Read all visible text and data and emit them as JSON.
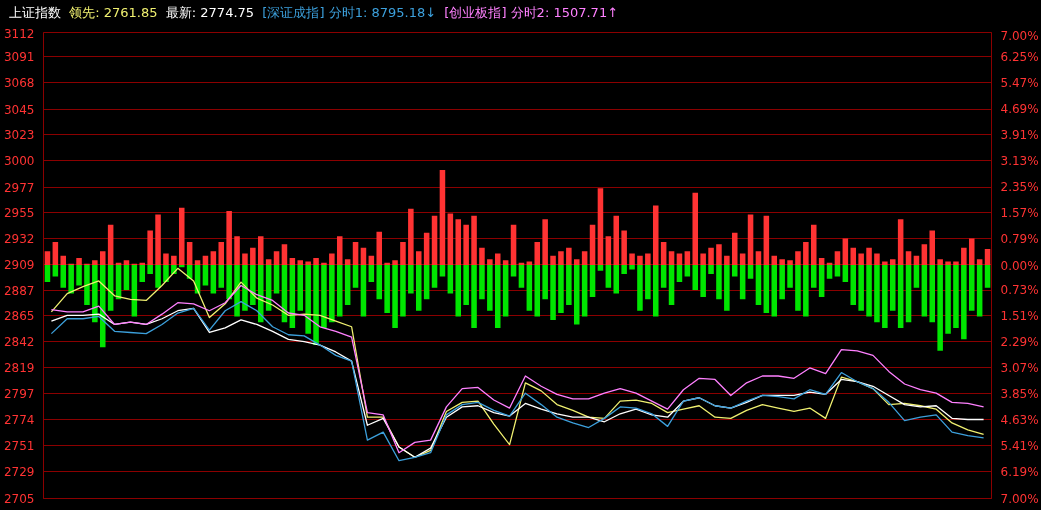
{
  "chart_data": [
    {
      "type": "bar",
      "grid": "y",
      "categories": [
        null,
        null,
        null,
        null,
        null,
        null,
        null,
        null,
        null,
        null,
        null,
        null,
        null,
        null,
        null,
        null,
        null,
        null,
        null,
        null,
        null,
        null,
        null,
        null,
        null,
        null,
        null,
        null,
        null,
        null,
        null,
        null,
        null,
        null,
        null,
        null,
        null,
        null,
        null,
        null,
        null,
        null,
        null,
        null,
        null,
        null,
        null,
        null,
        null,
        null,
        null,
        null,
        null,
        null,
        null,
        null,
        null,
        null,
        null,
        null,
        null,
        null,
        null,
        null,
        null,
        null,
        null,
        null,
        null,
        null,
        null,
        null,
        null,
        null,
        null,
        null,
        null,
        null,
        null,
        null,
        null,
        null,
        null,
        null,
        null,
        null,
        null,
        null,
        null,
        null,
        null,
        null,
        null,
        null,
        null,
        null,
        null,
        null,
        null,
        null,
        null,
        null,
        null,
        null,
        null,
        null,
        null,
        null,
        null,
        null,
        null,
        null,
        null,
        null,
        null,
        null,
        null,
        null,
        null,
        null
      ],
      "ylim": [
        2705,
        3112
      ],
      "yticks": [
        3112,
        3091,
        3068,
        3045,
        3023,
        3000,
        2977,
        2955,
        2932,
        2909,
        2887,
        2865,
        2842,
        2819,
        2797,
        2774,
        2751,
        2729,
        2705
      ],
      "y2lim": [
        -7,
        7
      ],
      "y2ticks": [
        {
          "value": 7,
          "label": "7.00%"
        },
        {
          "value": 6.25,
          "label": "6.25%"
        },
        {
          "value": 5.47,
          "label": "5.47%"
        },
        {
          "value": 4.69,
          "label": "4.69%"
        },
        {
          "value": 3.91,
          "label": "3.91%"
        },
        {
          "value": 3.13,
          "label": "3.13%"
        },
        {
          "value": 2.35,
          "label": "2.35%"
        },
        {
          "value": 1.57,
          "label": "1.57%"
        },
        {
          "value": 0.79,
          "label": "0.79%"
        },
        {
          "value": 0,
          "label": "0.00%"
        },
        {
          "value": -0.73,
          "label": "0.73%"
        },
        {
          "value": -1.51,
          "label": "1.51%"
        },
        {
          "value": -2.29,
          "label": "2.29%"
        },
        {
          "value": -3.07,
          "label": "3.07%"
        },
        {
          "value": -3.85,
          "label": "3.85%"
        },
        {
          "value": -4.63,
          "label": "4.63%"
        },
        {
          "value": -5.41,
          "label": "5.41%"
        },
        {
          "value": -6.19,
          "label": "6.19%"
        },
        {
          "value": -7,
          "label": "7.00%"
        }
      ],
      "series": [
        {
          "color": "#ff3333",
          "base": [
            2909,
            2909,
            2909,
            2909,
            2909,
            2909,
            2909,
            2909,
            2909,
            2909,
            2909,
            2909,
            2909,
            2909,
            2909,
            2909,
            2909,
            2909,
            2909,
            2909,
            2909,
            2909,
            2909,
            2909,
            2909,
            2909,
            2909,
            2909,
            2909,
            2909,
            2909,
            2909,
            2909,
            2909,
            2909,
            2909,
            2909,
            2909,
            2909,
            2909,
            2909,
            2909,
            2909,
            2909,
            2909,
            2909,
            2909,
            2909,
            2909,
            2909,
            2909,
            2909,
            2909,
            2909,
            2909,
            2909,
            2909,
            2909,
            2909,
            2909,
            2909,
            2909,
            2909,
            2909,
            2909,
            2909,
            2909,
            2909,
            2909,
            2909,
            2909,
            2909,
            2909,
            2909,
            2909,
            2909,
            2909,
            2909,
            2909,
            2909,
            2909,
            2909,
            2909,
            2909,
            2909,
            2909,
            2909,
            2909,
            2909,
            2909,
            2909,
            2909,
            2909,
            2909,
            2909,
            2909,
            2909,
            2909,
            2909,
            2909,
            2909,
            2909,
            2909,
            2909,
            2909,
            2909,
            2909,
            2909,
            2909,
            2909,
            2909,
            2909,
            2909,
            2909,
            2909,
            2909,
            2909,
            2909,
            2909,
            2909
          ],
          "values": [
            12,
            20,
            8,
            1,
            6,
            1,
            4,
            12,
            35,
            2,
            4,
            1,
            2,
            30,
            44,
            10,
            8,
            50,
            20,
            4,
            8,
            12,
            20,
            47,
            25,
            10,
            15,
            25,
            5,
            12,
            18,
            6,
            4,
            3,
            6,
            2,
            10,
            25,
            5,
            20,
            15,
            8,
            29,
            2,
            4,
            20,
            49,
            12,
            28,
            43,
            83,
            45,
            40,
            35,
            43,
            15,
            5,
            10,
            4,
            35,
            2,
            3,
            20,
            40,
            8,
            12,
            15,
            5,
            12,
            35,
            67,
            25,
            43,
            30,
            10,
            8,
            10,
            52,
            20,
            12,
            10,
            12,
            63,
            10,
            15,
            18,
            8,
            28,
            10,
            44,
            12,
            43,
            8,
            5,
            4,
            12,
            20,
            35,
            6,
            2,
            12,
            23,
            15,
            10,
            15,
            10,
            3,
            5,
            40,
            12,
            8,
            18,
            30,
            5,
            3,
            3,
            15,
            23,
            5,
            14
          ]
        },
        {
          "color": "#00e600",
          "base": [
            2909,
            2909,
            2909,
            2909,
            2909,
            2909,
            2909,
            2909,
            2909,
            2909,
            2909,
            2909,
            2909,
            2909,
            2909,
            2909,
            2909,
            2909,
            2909,
            2909,
            2909,
            2909,
            2909,
            2909,
            2909,
            2909,
            2909,
            2909,
            2909,
            2909,
            2909,
            2909,
            2909,
            2909,
            2909,
            2909,
            2909,
            2909,
            2909,
            2909,
            2909,
            2909,
            2909,
            2909,
            2909,
            2909,
            2909,
            2909,
            2909,
            2909,
            2909,
            2909,
            2909,
            2909,
            2909,
            2909,
            2909,
            2909,
            2909,
            2909,
            2909,
            2909,
            2909,
            2909,
            2909,
            2909,
            2909,
            2909,
            2909,
            2909,
            2909,
            2909,
            2909,
            2909,
            2909,
            2909,
            2909,
            2909,
            2909,
            2909,
            2909,
            2909,
            2909,
            2909,
            2909,
            2909,
            2909,
            2909,
            2909,
            2909,
            2909,
            2909,
            2909,
            2909,
            2909,
            2909,
            2909,
            2909,
            2909,
            2909,
            2909,
            2909,
            2909,
            2909,
            2909,
            2909,
            2909,
            2909,
            2909,
            2909,
            2909,
            2909,
            2909,
            2909,
            2909,
            2909,
            2909,
            2909,
            2909,
            2909
          ],
          "values": [
            -15,
            -10,
            -20,
            -25,
            -18,
            -35,
            -50,
            -72,
            -40,
            -30,
            -22,
            -45,
            -15,
            -8,
            -20,
            -15,
            -8,
            -2,
            -12,
            -25,
            -18,
            -25,
            -20,
            -30,
            -45,
            -40,
            -35,
            -50,
            -40,
            -25,
            -50,
            -55,
            -40,
            -60,
            -70,
            -55,
            -50,
            -45,
            -35,
            -20,
            -45,
            -15,
            -30,
            -42,
            -55,
            -45,
            -25,
            -40,
            -30,
            -20,
            -10,
            -25,
            -45,
            -35,
            -55,
            -30,
            -40,
            -55,
            -45,
            -10,
            -20,
            -40,
            -45,
            -30,
            -48,
            -42,
            -35,
            -52,
            -45,
            -28,
            -5,
            -20,
            -25,
            -8,
            -4,
            -40,
            -30,
            -45,
            -20,
            -35,
            -15,
            -10,
            -22,
            -28,
            -8,
            -30,
            -40,
            -10,
            -30,
            -12,
            -35,
            -42,
            -45,
            -30,
            -20,
            -40,
            -45,
            -20,
            -28,
            -12,
            -10,
            -15,
            -35,
            -40,
            -45,
            -50,
            -55,
            -40,
            -55,
            -50,
            -20,
            -45,
            -50,
            -75,
            -60,
            -55,
            -65,
            -40,
            -45,
            -20
          ]
        }
      ]
    },
    {
      "type": "line",
      "title": "上证指数",
      "legend": "top",
      "tick_labels": false,
      "categories": [
        null,
        null,
        null,
        null,
        null,
        null,
        null,
        null,
        null,
        null,
        null,
        null,
        null,
        null,
        null,
        null,
        null,
        null,
        null,
        null,
        null,
        null,
        null,
        null,
        null,
        null,
        null,
        null,
        null,
        null,
        null,
        null,
        null,
        null,
        null,
        null,
        null,
        null,
        null,
        null,
        null,
        null,
        null,
        null,
        null,
        null,
        null,
        null,
        null,
        null,
        null,
        null,
        null,
        null,
        null,
        null,
        null,
        null,
        null,
        null
      ],
      "ylim": [
        2705,
        3112
      ],
      "yticks": [
        3112,
        3091,
        3068,
        3045,
        3023,
        3000,
        2977,
        2955,
        2932,
        2909,
        2887,
        2865,
        2842,
        2819,
        2797,
        2774,
        2751,
        2729,
        2705
      ],
      "series": [
        {
          "name": "领先: 2761.85",
          "color": "#f0f070",
          "values": [
            2868,
            2884,
            2890,
            2895,
            2882,
            2879,
            2878,
            2891,
            2906,
            2895,
            2863,
            2875,
            2894,
            2880,
            2874,
            2865,
            2866,
            2865,
            2860,
            2855,
            2776,
            2776,
            2750,
            2741,
            2747,
            2781,
            2789,
            2790,
            2770,
            2752,
            2806,
            2799,
            2787,
            2782,
            2776,
            2775,
            2790,
            2791,
            2788,
            2780,
            2783,
            2786,
            2776,
            2775,
            2782,
            2787,
            2784,
            2781,
            2784,
            2775,
            2811,
            2807,
            2801,
            2787,
            2788,
            2786,
            2783,
            2771,
            2765,
            2761
          ]
        },
        {
          "name": "最新: 2774.75",
          "color": "#ffffff",
          "values": [
            2860,
            2865,
            2865,
            2866,
            2857,
            2859,
            2857,
            2862,
            2869,
            2871,
            2850,
            2854,
            2861,
            2857,
            2851,
            2844,
            2842,
            2839,
            2833,
            2825,
            2769,
            2775,
            2750,
            2741,
            2749,
            2776,
            2785,
            2786,
            2780,
            2777,
            2788,
            2783,
            2779,
            2776,
            2776,
            2772,
            2779,
            2783,
            2778,
            2776,
            2790,
            2793,
            2786,
            2784,
            2789,
            2795,
            2795,
            2795,
            2798,
            2796,
            2809,
            2807,
            2803,
            2795,
            2787,
            2785,
            2786,
            2775,
            2774,
            2774
          ]
        },
        {
          "name": "[深证成指] 分时1: 8795.18↓",
          "color": "#3ca0dc",
          "values": [
            2849,
            2862,
            2862,
            2864,
            2851,
            2850,
            2849,
            2857,
            2867,
            2871,
            2852,
            2869,
            2877,
            2869,
            2855,
            2848,
            2847,
            2839,
            2830,
            2825,
            2756,
            2763,
            2738,
            2741,
            2745,
            2778,
            2787,
            2789,
            2782,
            2777,
            2797,
            2787,
            2776,
            2771,
            2767,
            2775,
            2785,
            2784,
            2779,
            2768,
            2790,
            2793,
            2786,
            2784,
            2790,
            2795,
            2794,
            2792,
            2800,
            2796,
            2815,
            2807,
            2801,
            2789,
            2773,
            2776,
            2778,
            2763,
            2760,
            2758
          ]
        },
        {
          "name": "[创业板指] 分时2: 1507.71↑",
          "color": "#ff80ff",
          "values": [
            2870,
            2868,
            2868,
            2873,
            2857,
            2859,
            2857,
            2866,
            2876,
            2875,
            2869,
            2876,
            2891,
            2883,
            2878,
            2867,
            2865,
            2855,
            2851,
            2846,
            2780,
            2778,
            2745,
            2754,
            2756,
            2785,
            2801,
            2802,
            2791,
            2784,
            2812,
            2803,
            2796,
            2792,
            2792,
            2797,
            2801,
            2797,
            2790,
            2783,
            2800,
            2810,
            2809,
            2795,
            2806,
            2812,
            2812,
            2810,
            2819,
            2814,
            2835,
            2834,
            2830,
            2816,
            2805,
            2800,
            2797,
            2789,
            2788,
            2785
          ]
        }
      ]
    }
  ]
}
